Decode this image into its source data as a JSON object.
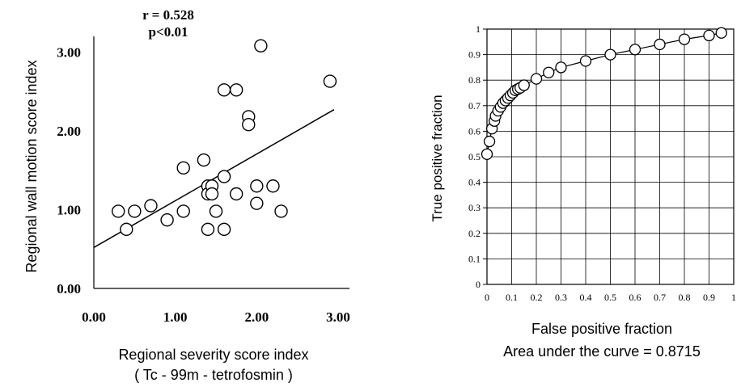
{
  "chart_data": [
    {
      "type": "scatter",
      "annotations": [
        "r = 0.528",
        "p<0.01"
      ],
      "xlabel": "Regional severity score index",
      "xlabel_sub": "( Tc - 99m - tetrofosmin )",
      "ylabel": "Regional wall motion score index",
      "xlim": [
        0,
        3
      ],
      "ylim": [
        0,
        3.2
      ],
      "xticks": [
        "0.00",
        "1.00",
        "2.00",
        "3.00"
      ],
      "yticks": [
        "0.00",
        "1.00",
        "2.00",
        "3.00"
      ],
      "grid": false,
      "points": [
        {
          "x": 0.3,
          "y": 0.98
        },
        {
          "x": 0.4,
          "y": 0.75
        },
        {
          "x": 0.5,
          "y": 0.98
        },
        {
          "x": 0.7,
          "y": 1.05
        },
        {
          "x": 0.9,
          "y": 0.87
        },
        {
          "x": 1.1,
          "y": 0.98
        },
        {
          "x": 1.1,
          "y": 1.53
        },
        {
          "x": 1.35,
          "y": 1.63
        },
        {
          "x": 1.4,
          "y": 1.3
        },
        {
          "x": 1.4,
          "y": 1.2
        },
        {
          "x": 1.4,
          "y": 0.75
        },
        {
          "x": 1.45,
          "y": 1.3
        },
        {
          "x": 1.45,
          "y": 1.2
        },
        {
          "x": 1.5,
          "y": 0.98
        },
        {
          "x": 1.6,
          "y": 1.42
        },
        {
          "x": 1.6,
          "y": 0.75
        },
        {
          "x": 1.6,
          "y": 2.52
        },
        {
          "x": 1.75,
          "y": 2.52
        },
        {
          "x": 1.75,
          "y": 1.2
        },
        {
          "x": 1.9,
          "y": 2.18
        },
        {
          "x": 1.9,
          "y": 2.08
        },
        {
          "x": 2.0,
          "y": 1.3
        },
        {
          "x": 2.0,
          "y": 1.08
        },
        {
          "x": 2.05,
          "y": 3.08
        },
        {
          "x": 2.2,
          "y": 1.3
        },
        {
          "x": 2.3,
          "y": 0.98
        },
        {
          "x": 2.9,
          "y": 2.63
        }
      ],
      "regression": {
        "x1": 0.0,
        "y1": 0.52,
        "x2": 2.95,
        "y2": 2.27
      }
    },
    {
      "type": "line",
      "xlabel": "False positive fraction",
      "ylabel": "True positive fraction",
      "caption": "Area under the curve  =  0.8715",
      "xlim": [
        0,
        1
      ],
      "ylim": [
        0,
        1
      ],
      "xticks": [
        "0",
        "0.1",
        "0.2",
        "0.3",
        "0.4",
        "0.5",
        "0.6",
        "0.7",
        "0.8",
        "0.9",
        "1"
      ],
      "yticks": [
        "0",
        "0.1",
        "0.2",
        "0.3",
        "0.4",
        "0.5",
        "0.6",
        "0.7",
        "0.8",
        "0.9",
        "1"
      ],
      "grid": true,
      "x": [
        0.0,
        0.01,
        0.02,
        0.03,
        0.035,
        0.045,
        0.055,
        0.065,
        0.075,
        0.085,
        0.095,
        0.105,
        0.115,
        0.125,
        0.135,
        0.15,
        0.2,
        0.25,
        0.3,
        0.4,
        0.5,
        0.6,
        0.7,
        0.8,
        0.9,
        0.95
      ],
      "y": [
        0.51,
        0.56,
        0.61,
        0.64,
        0.66,
        0.68,
        0.695,
        0.71,
        0.72,
        0.73,
        0.74,
        0.75,
        0.76,
        0.765,
        0.77,
        0.78,
        0.805,
        0.83,
        0.85,
        0.875,
        0.9,
        0.92,
        0.94,
        0.96,
        0.975,
        0.985
      ]
    }
  ]
}
